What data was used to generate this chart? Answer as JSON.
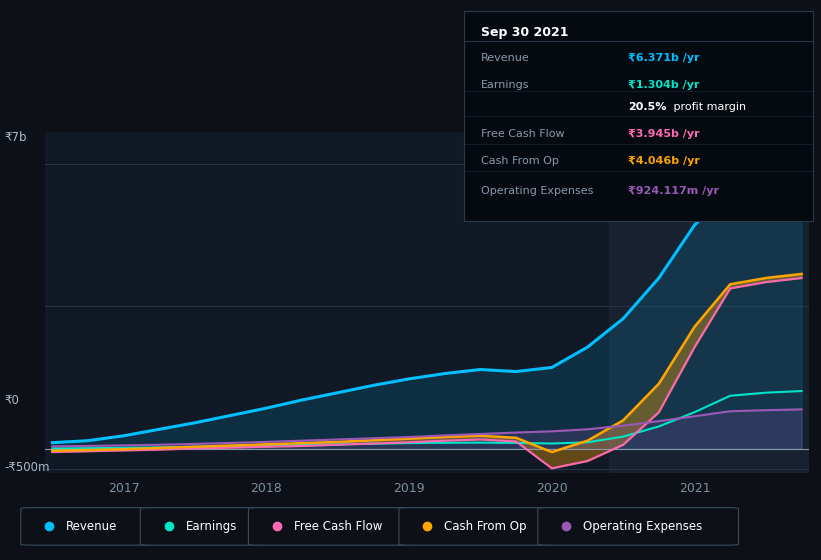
{
  "bg_color": "#0d1117",
  "plot_bg_color": "#111927",
  "highlight_bg": "#141d2b",
  "y7b_label": "₹7b",
  "y0_label": "₹0",
  "yneg_label": "-₹500m",
  "ylim": [
    -600000000,
    7800000000
  ],
  "years": [
    2016.5,
    2016.75,
    2017.0,
    2017.25,
    2017.5,
    2017.75,
    2018.0,
    2018.25,
    2018.5,
    2018.75,
    2019.0,
    2019.25,
    2019.5,
    2019.75,
    2020.0,
    2020.25,
    2020.5,
    2020.75,
    2021.0,
    2021.25,
    2021.5,
    2021.75
  ],
  "revenue": [
    150000000,
    200000000,
    320000000,
    480000000,
    640000000,
    820000000,
    1000000000,
    1200000000,
    1380000000,
    1560000000,
    1720000000,
    1850000000,
    1950000000,
    1900000000,
    2000000000,
    2500000000,
    3200000000,
    4200000000,
    5500000000,
    6371000000,
    7100000000,
    7300000000
  ],
  "earnings": [
    10000000,
    15000000,
    25000000,
    35000000,
    50000000,
    65000000,
    80000000,
    95000000,
    110000000,
    125000000,
    140000000,
    148000000,
    152000000,
    145000000,
    130000000,
    160000000,
    300000000,
    550000000,
    900000000,
    1304000000,
    1380000000,
    1420000000
  ],
  "free_cash_flow": [
    -80000000,
    -60000000,
    -40000000,
    -20000000,
    10000000,
    30000000,
    50000000,
    70000000,
    100000000,
    130000000,
    160000000,
    200000000,
    230000000,
    180000000,
    -480000000,
    -300000000,
    100000000,
    900000000,
    2500000000,
    3945000000,
    4100000000,
    4200000000
  ],
  "cash_from_op": [
    -50000000,
    -30000000,
    -10000000,
    20000000,
    50000000,
    80000000,
    110000000,
    140000000,
    170000000,
    210000000,
    250000000,
    290000000,
    320000000,
    270000000,
    -80000000,
    200000000,
    700000000,
    1600000000,
    3000000000,
    4046000000,
    4200000000,
    4300000000
  ],
  "operating_expenses": [
    60000000,
    70000000,
    85000000,
    100000000,
    120000000,
    145000000,
    170000000,
    200000000,
    230000000,
    260000000,
    290000000,
    330000000,
    365000000,
    400000000,
    430000000,
    480000000,
    570000000,
    680000000,
    800000000,
    924117000,
    950000000,
    970000000
  ],
  "revenue_color": "#00bfff",
  "earnings_color": "#00e5c8",
  "fcf_color": "#ff69b4",
  "cashop_color": "#ffa500",
  "opex_color": "#9b59b6",
  "legend_items": [
    {
      "label": "Revenue",
      "color": "#00bfff"
    },
    {
      "label": "Earnings",
      "color": "#00e5c8"
    },
    {
      "label": "Free Cash Flow",
      "color": "#ff69b4"
    },
    {
      "label": "Cash From Op",
      "color": "#ffa500"
    },
    {
      "label": "Operating Expenses",
      "color": "#9b59b6"
    }
  ],
  "tooltip": {
    "title": "Sep 30 2021",
    "rows": [
      {
        "label": "Revenue",
        "value": "₹6.371b /yr",
        "color": "#00bfff"
      },
      {
        "label": "Earnings",
        "value": "₹1.304b /yr",
        "color": "#00e5c8"
      },
      {
        "label": "",
        "value": "20.5% profit margin",
        "color": "white"
      },
      {
        "label": "Free Cash Flow",
        "value": "₹3.945b /yr",
        "color": "#ff69b4"
      },
      {
        "label": "Cash From Op",
        "value": "₹4.046b /yr",
        "color": "#ffa500"
      },
      {
        "label": "Operating Expenses",
        "value": "₹924.117m /yr",
        "color": "#9b59b6"
      }
    ]
  }
}
